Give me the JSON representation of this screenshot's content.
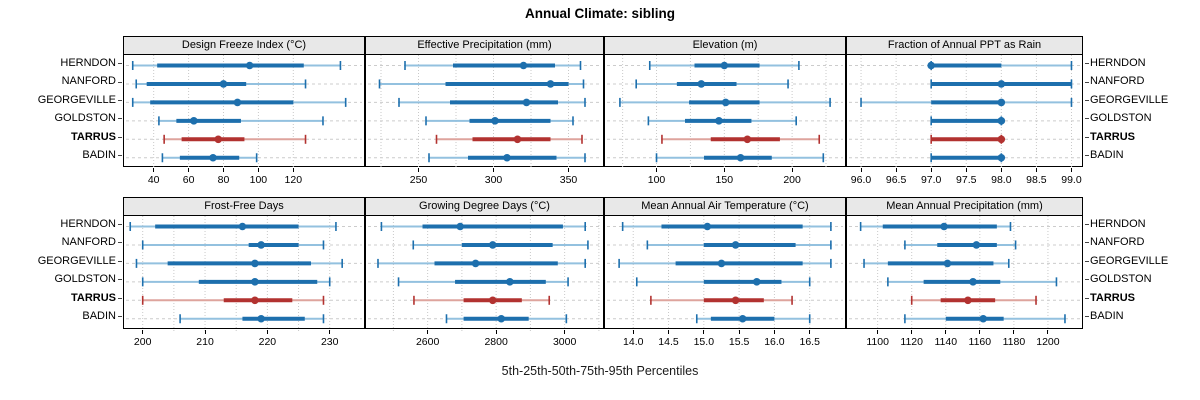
{
  "title": "Annual Climate: sibling",
  "footer": "5th-25th-50th-75th-95th Percentiles",
  "sites": [
    "HERNDON",
    "NANFORD",
    "GEORGEVILLE",
    "GOLDSTON",
    "TARRUS",
    "BADIN"
  ],
  "highlight_site": "TARRUS",
  "colors": {
    "blue": "#1d6fad",
    "blue_light": "#93c1df",
    "red": "#b23230",
    "red_light": "#dea49d",
    "gridline": "#c9c9c9",
    "row_guide": "#cccccc",
    "header_bg": "#e8e8e8",
    "panel_border": "#000000",
    "text": "#000000"
  },
  "chart_data": {
    "type": "percentile-dotplot",
    "percentiles": [
      5,
      25,
      50,
      75,
      95
    ],
    "rows": [
      "HERNDON",
      "NANFORD",
      "GEORGEVILLE",
      "GOLDSTON",
      "TARRUS",
      "BADIN"
    ],
    "highlight_row": "TARRUS",
    "grid": "dotted vertical at ticks, dashed horizontal per row",
    "panels": [
      {
        "title": "Design Freeze Index (°C)",
        "xlim": [
          23,
          160.5
        ],
        "ticks": [
          40,
          60,
          80,
          100,
          120
        ],
        "tick_labels": [
          "40",
          "60",
          "80",
          "100",
          "120"
        ],
        "minor_ticks": [],
        "series": {
          "HERNDON": [
            28,
            42,
            95,
            126,
            147
          ],
          "NANFORD": [
            30,
            36,
            80,
            93,
            127
          ],
          "GEORGEVILLE": [
            28,
            38,
            88,
            120,
            150
          ],
          "GOLDSTON": [
            43,
            53,
            63,
            90,
            137
          ],
          "TARRUS": [
            46,
            56,
            77,
            92,
            127
          ],
          "BADIN": [
            45,
            55,
            74,
            89,
            99
          ]
        }
      },
      {
        "title": "Effective Precipitation (mm)",
        "xlim": [
          215,
          373
        ],
        "ticks": [
          250,
          300,
          350
        ],
        "tick_labels": [
          "250",
          "300",
          "350"
        ],
        "minor_ticks": [
          225,
          275,
          325
        ],
        "series": {
          "HERNDON": [
            241,
            273,
            320,
            341,
            358
          ],
          "NANFORD": [
            224,
            268,
            338,
            350,
            360
          ],
          "GEORGEVILLE": [
            237,
            271,
            322,
            343,
            361
          ],
          "GOLDSTON": [
            255,
            284,
            301,
            338,
            353
          ],
          "TARRUS": [
            262,
            286,
            316,
            338,
            359
          ],
          "BADIN": [
            257,
            283,
            309,
            342,
            361
          ]
        }
      },
      {
        "title": "Elevation (m)",
        "xlim": [
          62,
          239
        ],
        "ticks": [
          100,
          150,
          200
        ],
        "tick_labels": [
          "100",
          "150",
          "200"
        ],
        "minor_ticks": [
          75,
          125,
          175,
          225
        ],
        "series": {
          "HERNDON": [
            95,
            128,
            150,
            176,
            205
          ],
          "NANFORD": [
            85,
            115,
            133,
            159,
            197
          ],
          "GEORGEVILLE": [
            73,
            124,
            151,
            176,
            228
          ],
          "GOLDSTON": [
            94,
            121,
            146,
            170,
            203
          ],
          "TARRUS": [
            104,
            140,
            167,
            191,
            220
          ],
          "BADIN": [
            100,
            135,
            162,
            185,
            223
          ]
        }
      },
      {
        "title": "Fraction of Annual PPT as Rain",
        "xlim": [
          95.8,
          99.15
        ],
        "ticks": [
          96.0,
          96.5,
          97.0,
          97.5,
          98.0,
          98.5,
          99.0
        ],
        "tick_labels": [
          "96.0",
          "96.5",
          "97.0",
          "97.5",
          "98.0",
          "98.5",
          "99.0"
        ],
        "minor_ticks": [],
        "series": {
          "HERNDON": [
            97,
            97,
            97,
            98,
            99
          ],
          "NANFORD": [
            97,
            97,
            98,
            99,
            99
          ],
          "GEORGEVILLE": [
            96,
            97,
            98,
            98,
            99
          ],
          "GOLDSTON": [
            97,
            97,
            98,
            98,
            98
          ],
          "TARRUS": [
            97,
            97,
            98,
            98,
            98
          ],
          "BADIN": [
            97,
            97,
            98,
            98,
            98
          ]
        }
      },
      {
        "title": "Frost-Free Days",
        "xlim": [
          197,
          235.5
        ],
        "ticks": [
          200,
          210,
          220,
          230
        ],
        "tick_labels": [
          "200",
          "210",
          "220",
          "230"
        ],
        "minor_ticks": [
          205,
          215,
          225
        ],
        "series": {
          "HERNDON": [
            198,
            202,
            216,
            225,
            231
          ],
          "NANFORD": [
            200,
            217,
            219,
            225,
            229
          ],
          "GEORGEVILLE": [
            199,
            204,
            218,
            227,
            232
          ],
          "GOLDSTON": [
            200,
            209,
            218,
            228,
            230
          ],
          "TARRUS": [
            200,
            213,
            218,
            224,
            229
          ],
          "BADIN": [
            206,
            216,
            219,
            226,
            229
          ]
        }
      },
      {
        "title": "Growing Degree Days (°C)",
        "xlim": [
          2420,
          3112
        ],
        "ticks": [
          2600,
          2800,
          3000
        ],
        "tick_labels": [
          "2600",
          "2800",
          "3000"
        ],
        "minor_ticks": [
          2500,
          2700,
          2900,
          3100
        ],
        "series": {
          "HERNDON": [
            2465,
            2585,
            2695,
            2995,
            3060
          ],
          "NANFORD": [
            2558,
            2700,
            2790,
            2965,
            3068
          ],
          "GEORGEVILLE": [
            2455,
            2620,
            2740,
            2980,
            3060
          ],
          "GOLDSTON": [
            2515,
            2680,
            2840,
            2945,
            3010
          ],
          "TARRUS": [
            2560,
            2705,
            2790,
            2875,
            2955
          ],
          "BADIN": [
            2655,
            2705,
            2815,
            2895,
            3005
          ]
        }
      },
      {
        "title": "Mean Annual Air Temperature (°C)",
        "xlim": [
          13.6,
          17.0
        ],
        "ticks": [
          14.0,
          14.5,
          15.0,
          15.5,
          16.0,
          16.5
        ],
        "tick_labels": [
          "14.0",
          "14.5",
          "15.0",
          "15.5",
          "16.0",
          "16.5"
        ],
        "minor_ticks": [],
        "series": {
          "HERNDON": [
            13.85,
            14.4,
            15.05,
            16.4,
            16.8
          ],
          "NANFORD": [
            14.2,
            15.0,
            15.45,
            16.3,
            16.8
          ],
          "GEORGEVILLE": [
            13.8,
            14.6,
            15.25,
            16.4,
            16.8
          ],
          "GOLDSTON": [
            14.05,
            15.0,
            15.75,
            16.1,
            16.5
          ],
          "TARRUS": [
            14.25,
            15.0,
            15.45,
            15.85,
            16.25
          ],
          "BADIN": [
            14.9,
            15.1,
            15.55,
            16.0,
            16.5
          ]
        }
      },
      {
        "title": "Mean Annual Precipitation (mm)",
        "xlim": [
          1082,
          1220
        ],
        "ticks": [
          1100,
          1120,
          1140,
          1160,
          1180,
          1200
        ],
        "tick_labels": [
          "1100",
          "1120",
          "1140",
          "1160",
          "1180",
          "1200"
        ],
        "minor_ticks": [],
        "series": {
          "HERNDON": [
            1090,
            1103,
            1139,
            1170,
            1178
          ],
          "NANFORD": [
            1116,
            1135,
            1158,
            1170,
            1181
          ],
          "GEORGEVILLE": [
            1092,
            1106,
            1141,
            1168,
            1177
          ],
          "GOLDSTON": [
            1106,
            1127,
            1156,
            1172,
            1205
          ],
          "TARRUS": [
            1120,
            1137,
            1153,
            1169,
            1193
          ],
          "BADIN": [
            1116,
            1140,
            1162,
            1174,
            1210
          ]
        }
      }
    ]
  }
}
